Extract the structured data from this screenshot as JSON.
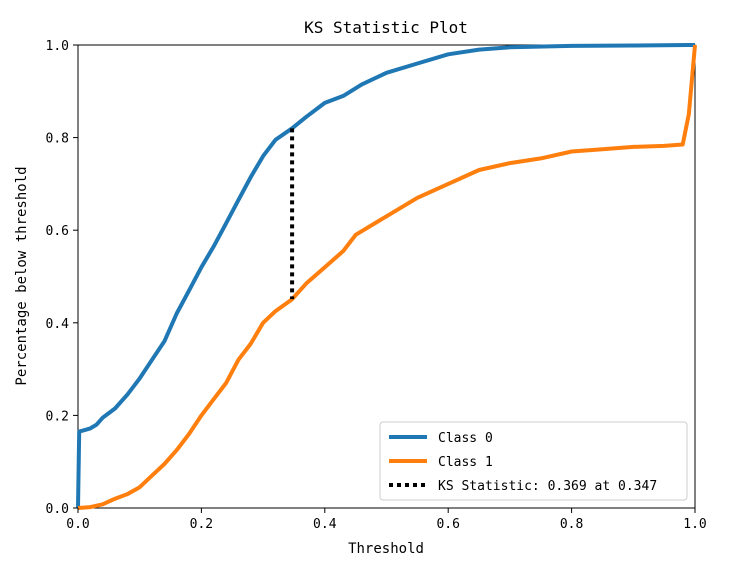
{
  "chart_data": {
    "type": "line",
    "title": "KS Statistic Plot",
    "xlabel": "Threshold",
    "ylabel": "Percentage below threshold",
    "xlim": [
      0.0,
      1.0
    ],
    "ylim": [
      0.0,
      1.0
    ],
    "xticks": [
      "0.0",
      "0.2",
      "0.4",
      "0.6",
      "0.8",
      "1.0"
    ],
    "yticks": [
      "0.0",
      "0.2",
      "0.4",
      "0.6",
      "0.8",
      "1.0"
    ],
    "grid": false,
    "legend_position": "lower-right",
    "series": [
      {
        "name": "Class 0",
        "color": "#1f77b4",
        "x": [
          0.0,
          0.002,
          0.01,
          0.02,
          0.03,
          0.04,
          0.05,
          0.06,
          0.08,
          0.1,
          0.12,
          0.14,
          0.16,
          0.18,
          0.2,
          0.22,
          0.24,
          0.26,
          0.28,
          0.3,
          0.32,
          0.347,
          0.37,
          0.4,
          0.43,
          0.46,
          0.5,
          0.55,
          0.6,
          0.65,
          0.7,
          0.8,
          0.9,
          0.99,
          1.0
        ],
        "y": [
          0.0,
          0.165,
          0.168,
          0.172,
          0.18,
          0.195,
          0.205,
          0.215,
          0.245,
          0.28,
          0.32,
          0.36,
          0.42,
          0.47,
          0.52,
          0.565,
          0.615,
          0.665,
          0.715,
          0.76,
          0.795,
          0.82,
          0.845,
          0.875,
          0.89,
          0.915,
          0.94,
          0.96,
          0.98,
          0.99,
          0.995,
          0.998,
          0.999,
          1.0,
          1.0
        ]
      },
      {
        "name": "Class 1",
        "color": "#ff7f0e",
        "x": [
          0.0,
          0.02,
          0.04,
          0.06,
          0.08,
          0.1,
          0.12,
          0.14,
          0.16,
          0.18,
          0.2,
          0.22,
          0.24,
          0.26,
          0.28,
          0.3,
          0.32,
          0.347,
          0.37,
          0.4,
          0.43,
          0.45,
          0.5,
          0.55,
          0.6,
          0.65,
          0.7,
          0.75,
          0.8,
          0.85,
          0.9,
          0.95,
          0.98,
          0.99,
          1.0
        ],
        "y": [
          0.0,
          0.002,
          0.008,
          0.02,
          0.03,
          0.045,
          0.07,
          0.095,
          0.125,
          0.16,
          0.2,
          0.235,
          0.27,
          0.32,
          0.355,
          0.4,
          0.425,
          0.451,
          0.485,
          0.52,
          0.555,
          0.59,
          0.63,
          0.67,
          0.7,
          0.73,
          0.745,
          0.755,
          0.77,
          0.775,
          0.78,
          0.782,
          0.785,
          0.85,
          1.0
        ]
      }
    ],
    "ks_line": {
      "name": "KS Statistic: 0.369 at 0.347",
      "x": 0.347,
      "y_from": 0.451,
      "y_to": 0.82,
      "color": "#000000"
    }
  }
}
